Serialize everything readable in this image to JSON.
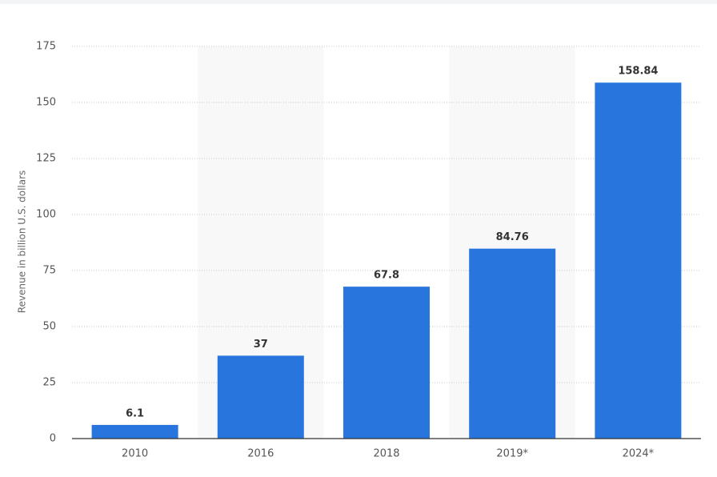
{
  "chart_data": {
    "type": "bar",
    "y_axis_label": "Revenue in billion U.S. dollars",
    "categories": [
      "2010",
      "2016",
      "2018",
      "2019*",
      "2024*"
    ],
    "values": [
      6.1,
      37,
      67.8,
      84.76,
      158.84
    ],
    "color": "#2876dd",
    "ylim": [
      0,
      175
    ],
    "yticks": [
      0,
      25,
      50,
      75,
      100,
      125,
      150,
      175
    ],
    "grid": true
  }
}
